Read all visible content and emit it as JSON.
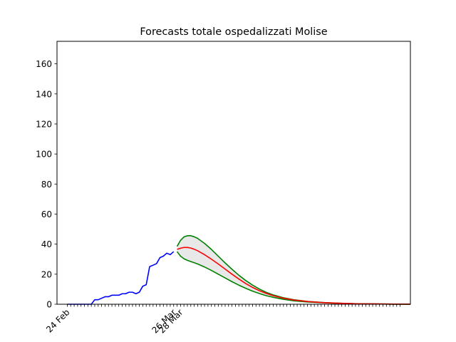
{
  "chart_data": {
    "type": "line",
    "title": "Forecasts totale ospedalizzati Molise",
    "xlabel": "",
    "ylabel": "",
    "ylim": [
      0,
      175
    ],
    "yticks": [
      0,
      20,
      40,
      60,
      80,
      100,
      120,
      140,
      160
    ],
    "x_day_range": [
      -3,
      100
    ],
    "x_tick_labels": [
      {
        "day": 0,
        "label": "24 Feb"
      },
      {
        "day": 31,
        "label": "26 Mar"
      },
      {
        "day": 33,
        "label": "28 Mar"
      }
    ],
    "grid": false,
    "legend": "none",
    "observed": {
      "color": "#0000ff",
      "x": [
        0,
        1,
        2,
        3,
        4,
        5,
        6,
        7,
        8,
        9,
        10,
        11,
        12,
        13,
        14,
        15,
        16,
        17,
        18,
        19,
        20,
        21,
        22,
        23,
        24,
        25,
        26,
        27,
        28,
        29,
        30,
        31
      ],
      "y": [
        0,
        0,
        0,
        0,
        0,
        0,
        0,
        0,
        3,
        3,
        4,
        5,
        5,
        6,
        6,
        6,
        7,
        7,
        8,
        8,
        7,
        8,
        12,
        13,
        25,
        26,
        27,
        31,
        32,
        34,
        33,
        35
      ]
    },
    "forecast_median": {
      "color": "#ff0000",
      "x": [
        32,
        33,
        34,
        35,
        36,
        37,
        38,
        40,
        42,
        44,
        46,
        48,
        50,
        52,
        54,
        56,
        58,
        60,
        63,
        66,
        70,
        75,
        80,
        85,
        90,
        95,
        100
      ],
      "y": [
        36.5,
        37.3,
        37.8,
        37.8,
        37.4,
        36.6,
        35.6,
        33.0,
        30.0,
        26.8,
        23.4,
        20.0,
        16.8,
        13.8,
        11.2,
        9.0,
        7.2,
        5.7,
        4.0,
        2.8,
        1.8,
        1.0,
        0.6,
        0.3,
        0.2,
        0.1,
        0.05
      ]
    },
    "forecast_upper": {
      "color": "#008000",
      "x": [
        32,
        33,
        34,
        35,
        36,
        37,
        38,
        40,
        42,
        44,
        46,
        48,
        50,
        52,
        54,
        56,
        58,
        60,
        63,
        66,
        70,
        75,
        80,
        85,
        90,
        95,
        100
      ],
      "y": [
        38.5,
        42.5,
        44.8,
        45.6,
        45.6,
        44.9,
        43.8,
        40.5,
        36.5,
        32.0,
        27.5,
        23.3,
        19.3,
        15.8,
        12.7,
        10.1,
        7.9,
        6.2,
        4.3,
        3.0,
        1.9,
        1.1,
        0.6,
        0.3,
        0.2,
        0.1,
        0.05
      ]
    },
    "forecast_lower": {
      "color": "#008000",
      "x": [
        32,
        33,
        34,
        35,
        36,
        37,
        38,
        40,
        42,
        44,
        46,
        48,
        50,
        52,
        54,
        56,
        58,
        60,
        63,
        66,
        70,
        75,
        80,
        85,
        90,
        95,
        100
      ],
      "y": [
        35.0,
        32.0,
        30.3,
        29.2,
        28.4,
        27.6,
        26.8,
        24.8,
        22.5,
        20.0,
        17.5,
        15.0,
        12.7,
        10.6,
        8.7,
        7.1,
        5.7,
        4.6,
        3.3,
        2.3,
        1.5,
        0.9,
        0.5,
        0.3,
        0.15,
        0.08,
        0.04
      ]
    },
    "band_fill": "#e8e8e8"
  }
}
